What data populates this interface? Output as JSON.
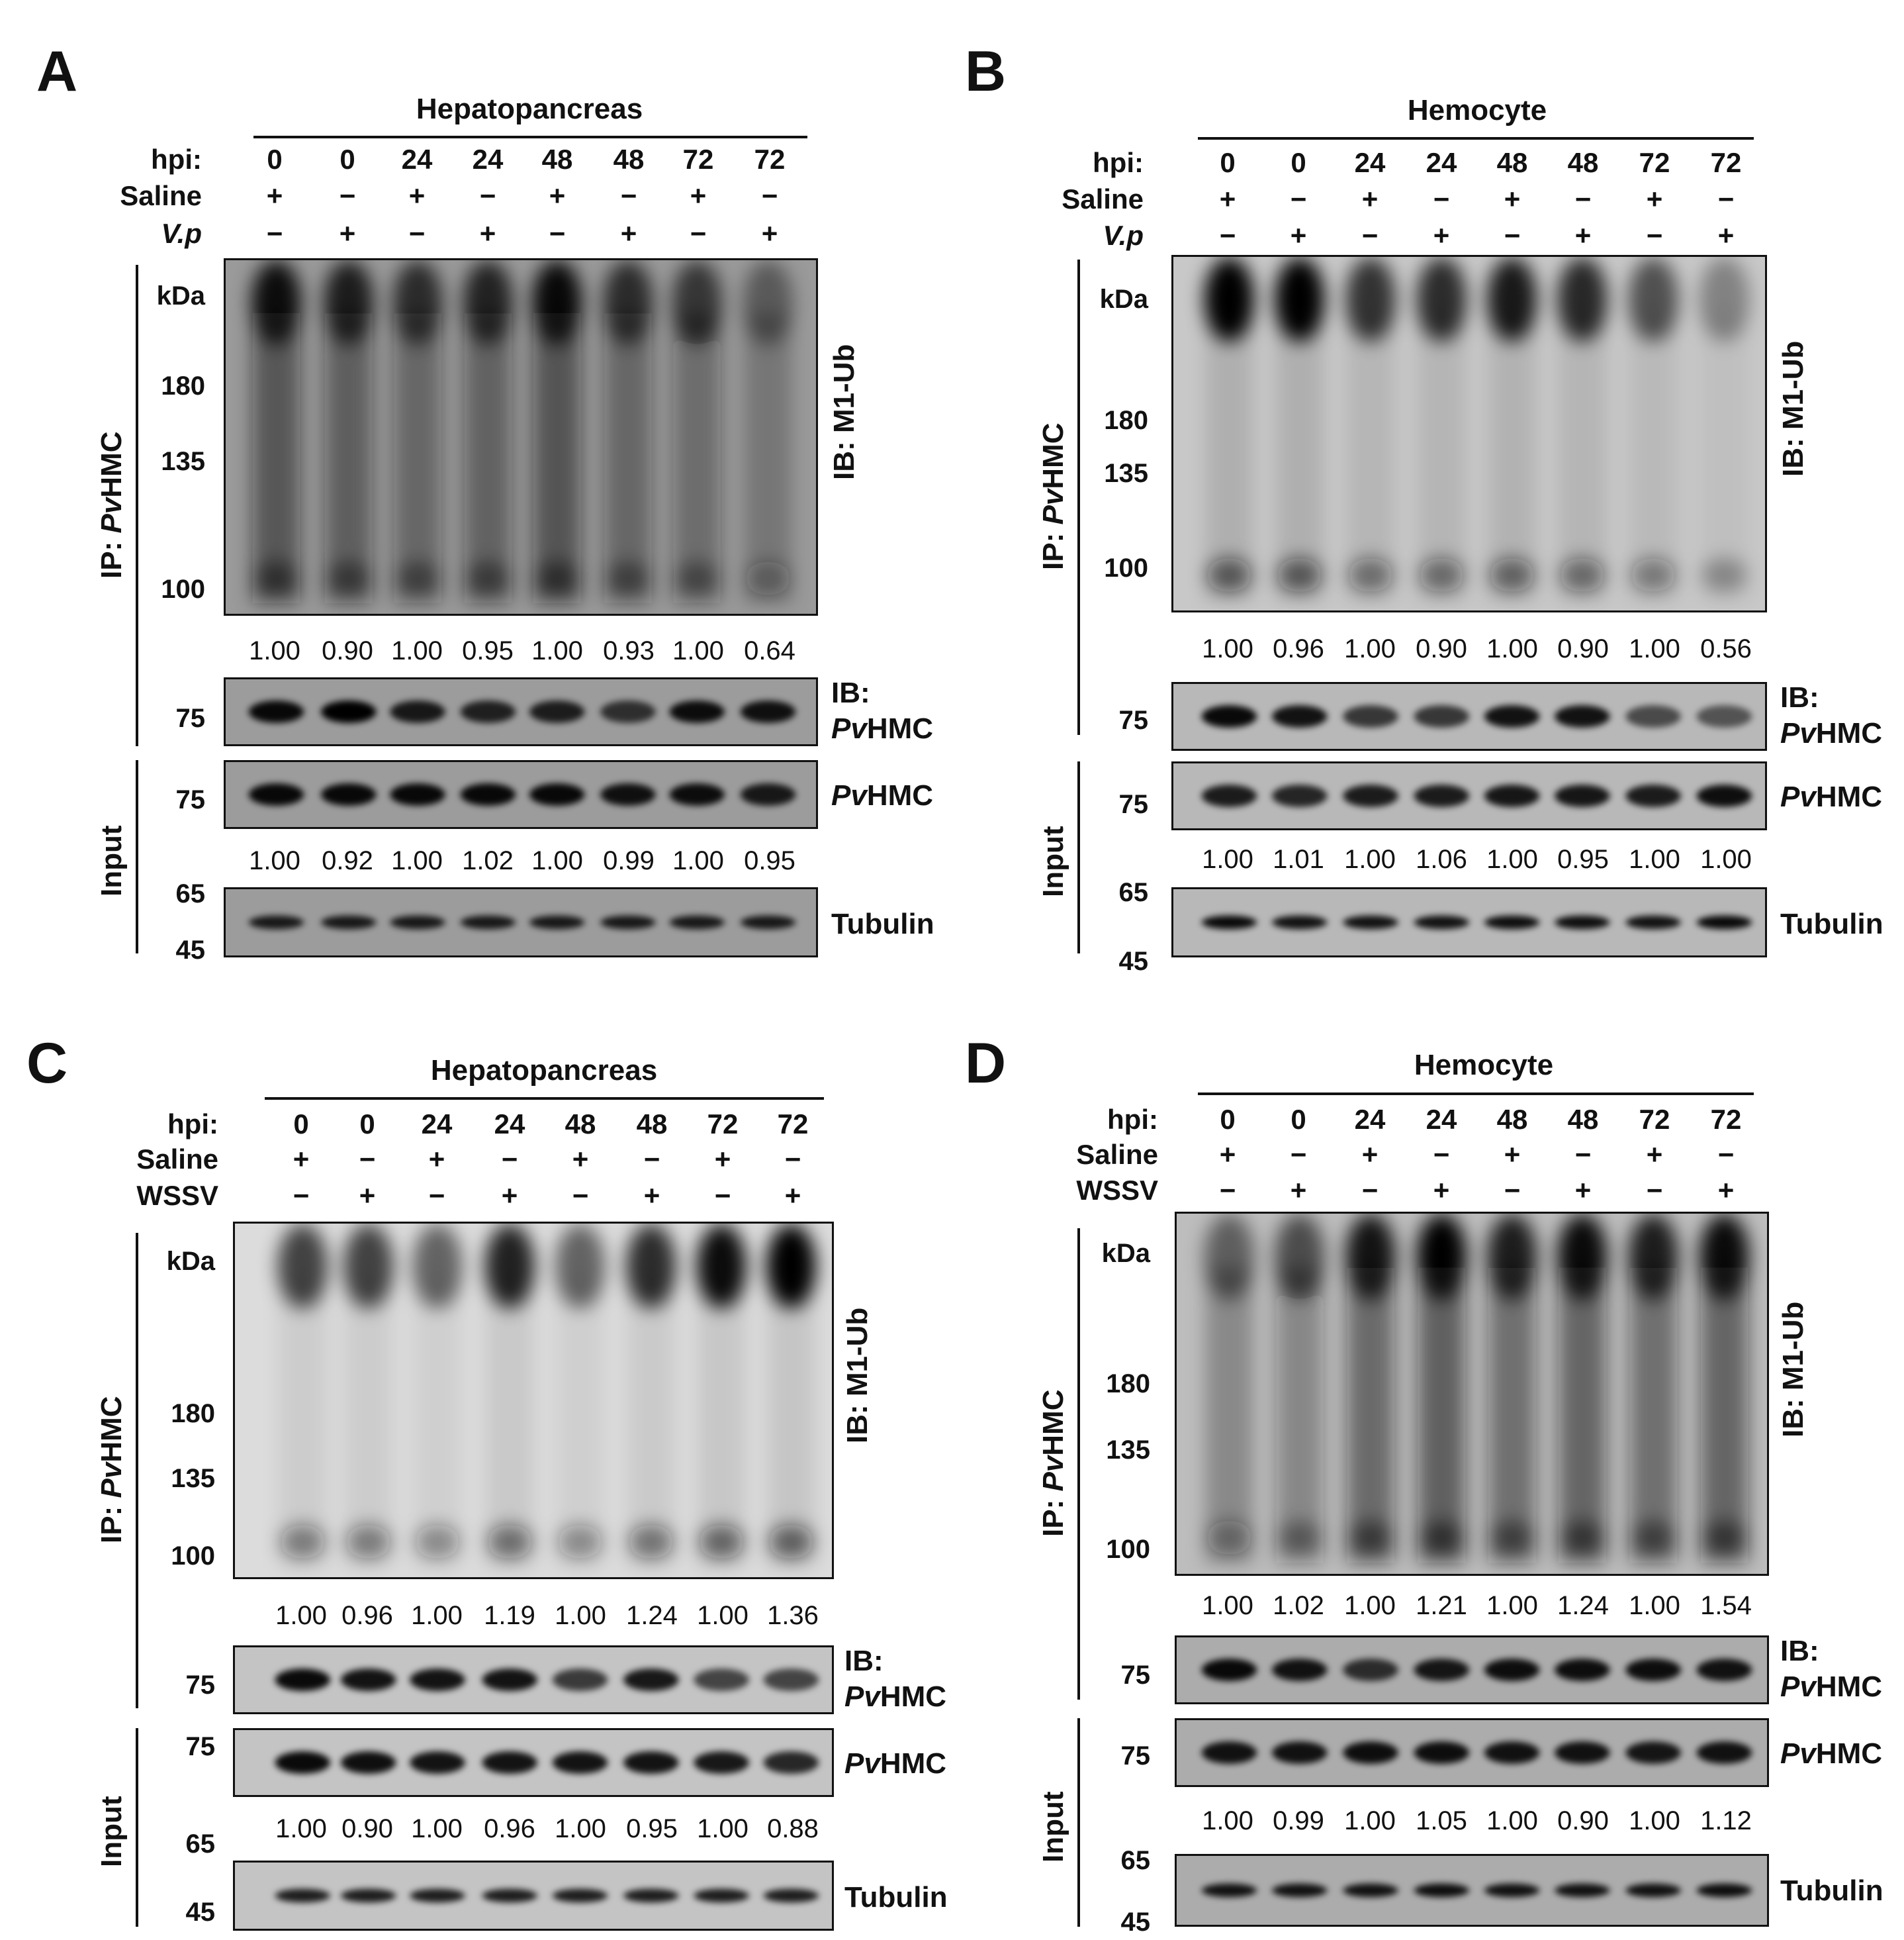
{
  "figure": {
    "panels": [
      {
        "letter": "A",
        "tissue": "Hepatopancreas",
        "row_labels": {
          "hpi": "hpi:",
          "saline": "Saline",
          "treat": "V.p",
          "treat_italic": true
        },
        "hpi": [
          "0",
          "0",
          "24",
          "24",
          "48",
          "48",
          "72",
          "72"
        ],
        "saline": [
          "+",
          "−",
          "+",
          "−",
          "+",
          "−",
          "+",
          "−"
        ],
        "treat": [
          "−",
          "+",
          "−",
          "+",
          "−",
          "+",
          "−",
          "+"
        ],
        "ip_label": {
          "prefix": "IP: ",
          "italic": "Pv",
          "suffix": "HMC"
        },
        "input_label": "Input",
        "kda_label": "kDa",
        "markers": {
          "ub": [
            "180",
            "135",
            "100"
          ],
          "ip_hmc": "75",
          "in_hmc": "75",
          "tub": [
            "65",
            "45"
          ]
        },
        "ub_label": "IB: M1-Ub",
        "ib_hmc": {
          "line1": "IB:",
          "italic": "Pv",
          "suffix": "HMC"
        },
        "hmc_label": {
          "italic": "Pv",
          "suffix": "HMC"
        },
        "tubulin_label": "Tubulin",
        "ub_ratios": [
          "1.00",
          "0.90",
          "1.00",
          "0.95",
          "1.00",
          "0.93",
          "1.00",
          "0.64"
        ],
        "input_ratios": [
          "1.00",
          "0.92",
          "1.00",
          "1.02",
          "1.00",
          "0.99",
          "1.00",
          "0.95"
        ]
      },
      {
        "letter": "B",
        "tissue": "Hemocyte",
        "row_labels": {
          "hpi": "hpi:",
          "saline": "Saline",
          "treat": "V.p",
          "treat_italic": true
        },
        "hpi": [
          "0",
          "0",
          "24",
          "24",
          "48",
          "48",
          "72",
          "72"
        ],
        "saline": [
          "+",
          "−",
          "+",
          "−",
          "+",
          "−",
          "+",
          "−"
        ],
        "treat": [
          "−",
          "+",
          "−",
          "+",
          "−",
          "+",
          "−",
          "+"
        ],
        "ip_label": {
          "prefix": "IP: ",
          "italic": "Pv",
          "suffix": "HMC"
        },
        "input_label": "Input",
        "kda_label": "kDa",
        "markers": {
          "ub": [
            "180",
            "135",
            "100"
          ],
          "ip_hmc": "75",
          "in_hmc": "75",
          "tub": [
            "65",
            "45"
          ]
        },
        "ub_label": "IB: M1-Ub",
        "ib_hmc": {
          "line1": "IB:",
          "italic": "Pv",
          "suffix": "HMC"
        },
        "hmc_label": {
          "italic": "Pv",
          "suffix": "HMC"
        },
        "tubulin_label": "Tubulin",
        "ub_ratios": [
          "1.00",
          "0.96",
          "1.00",
          "0.90",
          "1.00",
          "0.90",
          "1.00",
          "0.56"
        ],
        "input_ratios": [
          "1.00",
          "1.01",
          "1.00",
          "1.06",
          "1.00",
          "0.95",
          "1.00",
          "1.00"
        ]
      },
      {
        "letter": "C",
        "tissue": "Hepatopancreas",
        "row_labels": {
          "hpi": "hpi:",
          "saline": "Saline",
          "treat": "WSSV",
          "treat_italic": false
        },
        "hpi": [
          "0",
          "0",
          "24",
          "24",
          "48",
          "48",
          "72",
          "72"
        ],
        "saline": [
          "+",
          "−",
          "+",
          "−",
          "+",
          "−",
          "+",
          "−"
        ],
        "treat": [
          "−",
          "+",
          "−",
          "+",
          "−",
          "+",
          "−",
          "+"
        ],
        "ip_label": {
          "prefix": "IP: ",
          "italic": "Pv",
          "suffix": "HMC"
        },
        "input_label": "Input",
        "kda_label": "kDa",
        "markers": {
          "ub": [
            "180",
            "135",
            "100"
          ],
          "ip_hmc": "75",
          "in_hmc": "75",
          "tub": [
            "65",
            "45"
          ]
        },
        "ub_label": "IB: M1-Ub",
        "ib_hmc": {
          "line1": "IB:",
          "italic": "Pv",
          "suffix": "HMC"
        },
        "hmc_label": {
          "italic": "Pv",
          "suffix": "HMC"
        },
        "tubulin_label": "Tubulin",
        "ub_ratios": [
          "1.00",
          "0.96",
          "1.00",
          "1.19",
          "1.00",
          "1.24",
          "1.00",
          "1.36"
        ],
        "input_ratios": [
          "1.00",
          "0.90",
          "1.00",
          "0.96",
          "1.00",
          "0.95",
          "1.00",
          "0.88"
        ]
      },
      {
        "letter": "D",
        "tissue": "Hemocyte",
        "row_labels": {
          "hpi": "hpi:",
          "saline": "Saline",
          "treat": "WSSV",
          "treat_italic": false
        },
        "hpi": [
          "0",
          "0",
          "24",
          "24",
          "48",
          "48",
          "72",
          "72"
        ],
        "saline": [
          "+",
          "−",
          "+",
          "−",
          "+",
          "−",
          "+",
          "−"
        ],
        "treat": [
          "−",
          "+",
          "−",
          "+",
          "−",
          "+",
          "−",
          "+"
        ],
        "ip_label": {
          "prefix": "IP: ",
          "italic": "Pv",
          "suffix": "HMC"
        },
        "input_label": "Input",
        "kda_label": "kDa",
        "markers": {
          "ub": [
            "180",
            "135",
            "100"
          ],
          "ip_hmc": "75",
          "in_hmc": "75",
          "tub": [
            "65",
            "45"
          ]
        },
        "ub_label": "IB: M1-Ub",
        "ib_hmc": {
          "line1": "IB:",
          "italic": "Pv",
          "suffix": "HMC"
        },
        "hmc_label": {
          "italic": "Pv",
          "suffix": "HMC"
        },
        "tubulin_label": "Tubulin",
        "ub_ratios": [
          "1.00",
          "1.02",
          "1.00",
          "1.21",
          "1.00",
          "1.24",
          "1.00",
          "1.54"
        ],
        "input_ratios": [
          "1.00",
          "0.99",
          "1.00",
          "1.05",
          "1.00",
          "0.90",
          "1.00",
          "1.12"
        ]
      }
    ]
  }
}
